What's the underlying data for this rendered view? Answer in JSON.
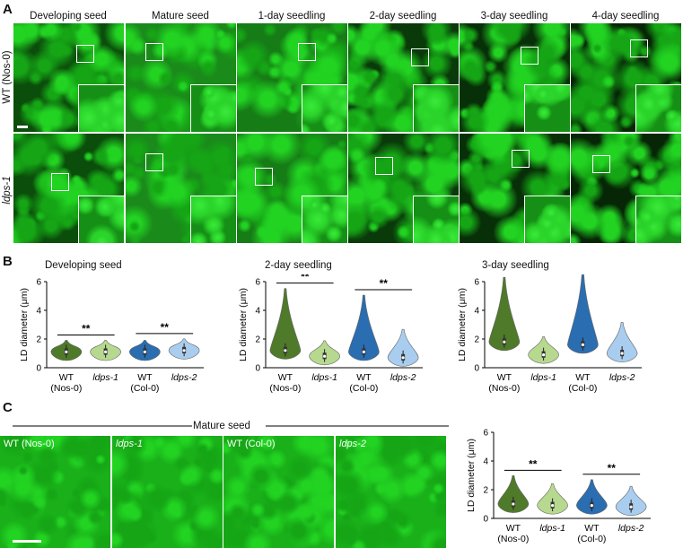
{
  "panels": {
    "A": "A",
    "B": "B",
    "C": "C"
  },
  "panelA": {
    "columns": [
      "Developing seed",
      "Mature seed",
      "1-day seedling",
      "2-day seedling",
      "3-day seedling",
      "4-day seedling"
    ],
    "rows": [
      "WT (Nos-0)",
      "ldps-1"
    ]
  },
  "panelB": {
    "titles": [
      "Developing seed",
      "2-day seedling",
      "3-day seedling"
    ],
    "ylabel": "LD diameter (μm)",
    "yticks": [
      "0",
      "2",
      "4",
      "6"
    ],
    "groups": [
      {
        "line1": "WT",
        "line2": "(Nos-0)",
        "italic": false
      },
      {
        "line1": "ldps-1",
        "line2": "",
        "italic": true
      },
      {
        "line1": "WT",
        "line2": "(Col-0)",
        "italic": false
      },
      {
        "line1": "ldps-2",
        "line2": "",
        "italic": true
      }
    ],
    "sig": "**"
  },
  "panelC": {
    "header": "Mature seed",
    "images": [
      "WT (Nos-0)",
      "ldps-1",
      "WT (Col-0)",
      "ldps-2"
    ]
  },
  "colors": {
    "wt_nos": "#4e7a2a",
    "ldps1": "#b7d98f",
    "wt_col": "#2a6db0",
    "ldps2": "#a9cdef",
    "fluor": "#1cc41c"
  },
  "chart_data": [
    {
      "type": "violin",
      "title": "Developing seed",
      "ylabel": "LD diameter (μm)",
      "ylim": [
        0,
        6
      ],
      "categories": [
        "WT (Nos-0)",
        "ldps-1",
        "WT (Col-0)",
        "ldps-2"
      ],
      "series": [
        {
          "values": [
            1.1,
            1.1,
            1.1,
            1.2
          ]
        }
      ],
      "significance": [
        [
          "WT (Nos-0)",
          "ldps-1",
          "**"
        ],
        [
          "WT (Col-0)",
          "ldps-2",
          "**"
        ]
      ]
    },
    {
      "type": "violin",
      "title": "2-day seedling",
      "ylabel": "LD diameter (μm)",
      "ylim": [
        0,
        6
      ],
      "categories": [
        "WT (Nos-0)",
        "ldps-1",
        "WT (Col-0)",
        "ldps-2"
      ],
      "series": [
        {
          "values": [
            1.2,
            0.8,
            1.1,
            0.7
          ]
        }
      ],
      "significance": [
        [
          "WT (Nos-0)",
          "ldps-1",
          "**"
        ],
        [
          "WT (Col-0)",
          "ldps-2",
          "**"
        ]
      ]
    },
    {
      "type": "violin",
      "title": "3-day seedling",
      "ylabel": "LD diameter (μm)",
      "ylim": [
        0,
        6
      ],
      "categories": [
        "WT (Nos-0)",
        "ldps-1",
        "WT (Col-0)",
        "ldps-2"
      ],
      "series": [
        {
          "values": [
            1.8,
            0.9,
            1.6,
            1.0
          ]
        }
      ],
      "significance": [
        [
          "WT (Nos-0)",
          "ldps-1",
          "**"
        ],
        [
          "WT (Col-0)",
          "ldps-2",
          "**"
        ]
      ]
    },
    {
      "type": "violin",
      "title": "",
      "ylabel": "LD diameter (μm)",
      "ylim": [
        0,
        6
      ],
      "categories": [
        "WT (Nos-0)",
        "ldps-1",
        "WT (Col-0)",
        "ldps-2"
      ],
      "series": [
        {
          "values": [
            1.0,
            0.9,
            0.9,
            0.8
          ]
        }
      ],
      "significance": [
        [
          "WT (Nos-0)",
          "ldps-1",
          "**"
        ],
        [
          "WT (Col-0)",
          "ldps-2",
          "**"
        ]
      ]
    }
  ]
}
